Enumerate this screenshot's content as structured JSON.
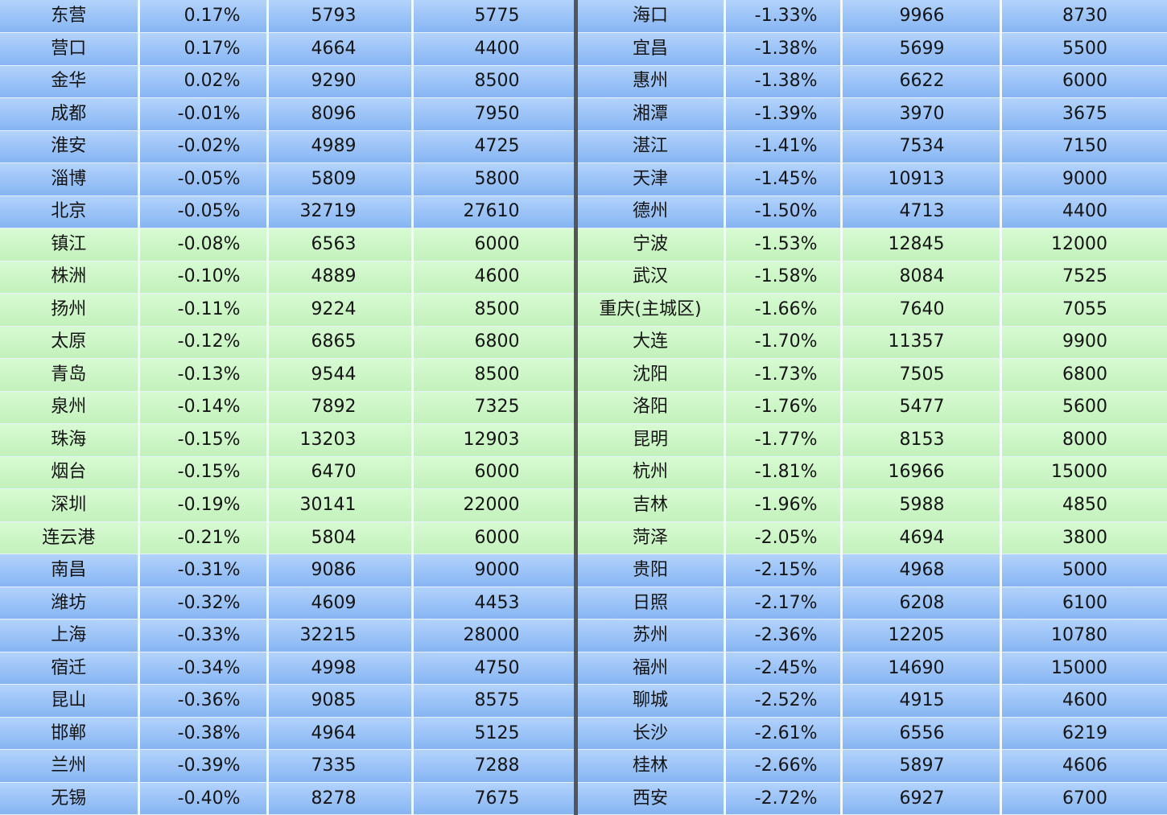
{
  "table": {
    "rows": [
      [
        "东营",
        "0.17%",
        5793,
        5775,
        "海口",
        "-1.33%",
        9966,
        8730
      ],
      [
        "营口",
        "0.17%",
        4664,
        4400,
        "宜昌",
        "-1.38%",
        5699,
        5500
      ],
      [
        "金华",
        "0.02%",
        9290,
        8500,
        "惠州",
        "-1.38%",
        6622,
        6000
      ],
      [
        "成都",
        "-0.01%",
        8096,
        7950,
        "湘潭",
        "-1.39%",
        3970,
        3675
      ],
      [
        "淮安",
        "-0.02%",
        4989,
        4725,
        "湛江",
        "-1.41%",
        7534,
        7150
      ],
      [
        "淄博",
        "-0.05%",
        5809,
        5800,
        "天津",
        "-1.45%",
        10913,
        9000
      ],
      [
        "北京",
        "-0.05%",
        32719,
        27610,
        "德州",
        "-1.50%",
        4713,
        4400
      ],
      [
        "镇江",
        "-0.08%",
        6563,
        6000,
        "宁波",
        "-1.53%",
        12845,
        12000
      ],
      [
        "株洲",
        "-0.10%",
        4889,
        4600,
        "武汉",
        "-1.58%",
        8084,
        7525
      ],
      [
        "扬州",
        "-0.11%",
        9224,
        8500,
        "重庆(主城区)",
        "-1.66%",
        7640,
        7055
      ],
      [
        "太原",
        "-0.12%",
        6865,
        6800,
        "大连",
        "-1.70%",
        11357,
        9900
      ],
      [
        "青岛",
        "-0.13%",
        9544,
        8500,
        "沈阳",
        "-1.73%",
        7505,
        6800
      ],
      [
        "泉州",
        "-0.14%",
        7892,
        7325,
        "洛阳",
        "-1.76%",
        5477,
        5600
      ],
      [
        "珠海",
        "-0.15%",
        13203,
        12903,
        "昆明",
        "-1.77%",
        8153,
        8000
      ],
      [
        "烟台",
        "-0.15%",
        6470,
        6000,
        "杭州",
        "-1.81%",
        16966,
        15000
      ],
      [
        "深圳",
        "-0.19%",
        30141,
        22000,
        "吉林",
        "-1.96%",
        5988,
        4850
      ],
      [
        "连云港",
        "-0.21%",
        5804,
        6000,
        "菏泽",
        "-2.05%",
        4694,
        3800
      ],
      [
        "南昌",
        "-0.31%",
        9086,
        9000,
        "贵阳",
        "-2.15%",
        4968,
        5000
      ],
      [
        "潍坊",
        "-0.32%",
        4609,
        4453,
        "日照",
        "-2.17%",
        6208,
        6100
      ],
      [
        "上海",
        "-0.33%",
        32215,
        28000,
        "苏州",
        "-2.36%",
        12205,
        10780
      ],
      [
        "宿迁",
        "-0.34%",
        4998,
        4750,
        "福州",
        "-2.45%",
        14690,
        15000
      ],
      [
        "昆山",
        "-0.36%",
        9085,
        8575,
        "聊城",
        "-2.52%",
        4915,
        4600
      ],
      [
        "邯郸",
        "-0.38%",
        4964,
        5125,
        "长沙",
        "-2.61%",
        6556,
        6219
      ],
      [
        "兰州",
        "-0.39%",
        7335,
        7288,
        "桂林",
        "-2.66%",
        5897,
        4606
      ],
      [
        "无锡",
        "-0.40%",
        8278,
        7675,
        "西安",
        "-2.72%",
        6927,
        6700
      ]
    ]
  }
}
